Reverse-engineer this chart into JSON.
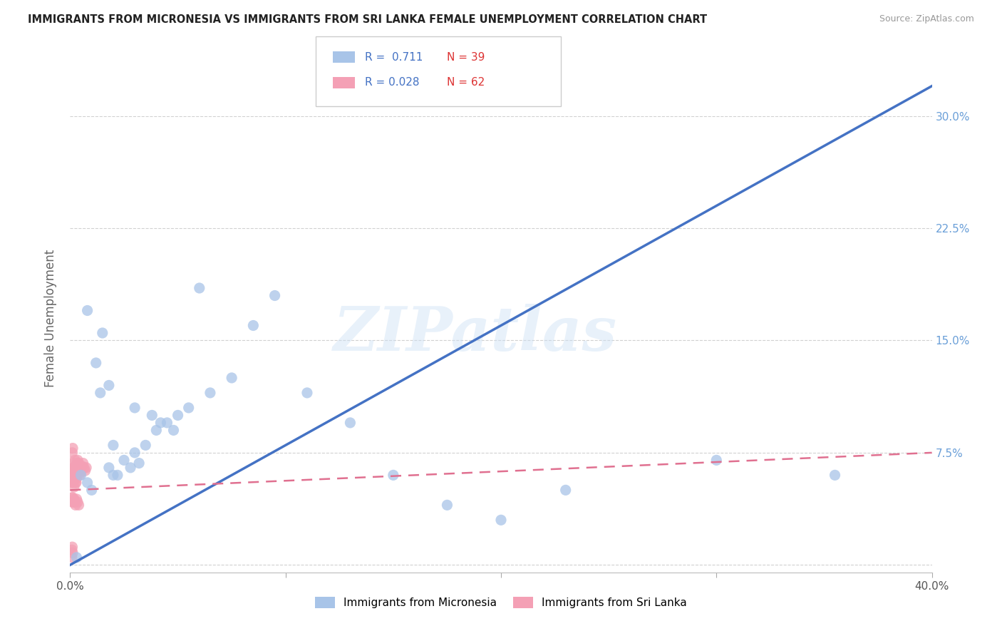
{
  "title": "IMMIGRANTS FROM MICRONESIA VS IMMIGRANTS FROM SRI LANKA FEMALE UNEMPLOYMENT CORRELATION CHART",
  "source": "Source: ZipAtlas.com",
  "ylabel": "Female Unemployment",
  "xlim": [
    0.0,
    0.4
  ],
  "ylim": [
    -0.005,
    0.335
  ],
  "series1_label": "Immigrants from Micronesia",
  "series2_label": "Immigrants from Sri Lanka",
  "watermark": "ZIPatlas",
  "color_blue": "#a8c4e8",
  "color_pink": "#f4a0b5",
  "color_line_blue": "#4472c4",
  "color_line_pink": "#e07090",
  "color_axis_right": "#6a9fd8",
  "R1": "0.711",
  "N1": "39",
  "R2": "0.028",
  "N2": "62",
  "blue_line": [
    0.0,
    0.0,
    0.4,
    0.32
  ],
  "pink_line": [
    0.0,
    0.05,
    0.4,
    0.075
  ],
  "mic_x": [
    0.005,
    0.01,
    0.008,
    0.015,
    0.018,
    0.022,
    0.025,
    0.03,
    0.02,
    0.035,
    0.012,
    0.018,
    0.04,
    0.045,
    0.032,
    0.05,
    0.048,
    0.06,
    0.038,
    0.028,
    0.008,
    0.014,
    0.02,
    0.03,
    0.042,
    0.055,
    0.065,
    0.075,
    0.085,
    0.095,
    0.11,
    0.13,
    0.15,
    0.175,
    0.2,
    0.23,
    0.3,
    0.355,
    0.003
  ],
  "mic_y": [
    0.06,
    0.05,
    0.055,
    0.155,
    0.065,
    0.06,
    0.07,
    0.075,
    0.06,
    0.08,
    0.135,
    0.12,
    0.09,
    0.095,
    0.068,
    0.1,
    0.09,
    0.185,
    0.1,
    0.065,
    0.17,
    0.115,
    0.08,
    0.105,
    0.095,
    0.105,
    0.115,
    0.125,
    0.16,
    0.18,
    0.115,
    0.095,
    0.06,
    0.04,
    0.03,
    0.05,
    0.07,
    0.06,
    0.005
  ],
  "sl_x": [
    0.0005,
    0.0008,
    0.001,
    0.0012,
    0.001,
    0.0008,
    0.0012,
    0.001,
    0.0015,
    0.0012,
    0.0015,
    0.0018,
    0.002,
    0.0018,
    0.0022,
    0.002,
    0.0025,
    0.0022,
    0.0018,
    0.002,
    0.0025,
    0.0028,
    0.003,
    0.0025,
    0.003,
    0.0032,
    0.0035,
    0.003,
    0.0035,
    0.0038,
    0.004,
    0.0042,
    0.0045,
    0.0048,
    0.005,
    0.0055,
    0.006,
    0.0065,
    0.007,
    0.0075,
    0.0008,
    0.001,
    0.0012,
    0.0015,
    0.0018,
    0.002,
    0.0025,
    0.003,
    0.0035,
    0.004,
    0.0005,
    0.0008,
    0.001,
    0.0012,
    0.0015,
    0.0018,
    0.0008,
    0.001,
    0.0012,
    0.0008,
    0.001,
    0.0012
  ],
  "sl_y": [
    0.06,
    0.058,
    0.055,
    0.062,
    0.06,
    0.057,
    0.065,
    0.062,
    0.06,
    0.068,
    0.055,
    0.052,
    0.065,
    0.06,
    0.07,
    0.062,
    0.055,
    0.065,
    0.058,
    0.063,
    0.06,
    0.055,
    0.065,
    0.062,
    0.058,
    0.068,
    0.063,
    0.06,
    0.07,
    0.065,
    0.068,
    0.063,
    0.06,
    0.065,
    0.062,
    0.066,
    0.068,
    0.065,
    0.063,
    0.065,
    0.045,
    0.042,
    0.045,
    0.042,
    0.044,
    0.042,
    0.04,
    0.044,
    0.042,
    0.04,
    0.06,
    0.062,
    0.06,
    0.058,
    0.062,
    0.06,
    0.01,
    0.012,
    0.008,
    0.005,
    0.075,
    0.078
  ]
}
